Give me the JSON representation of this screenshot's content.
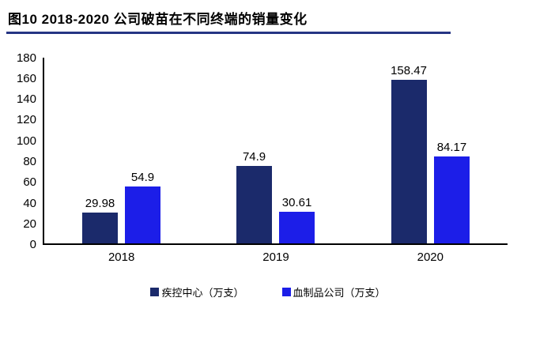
{
  "title": "图10 2018-2020 公司破苗在不同终端的销量变化",
  "colors": {
    "series1": "#1B2A6B",
    "series2": "#1C1EE8",
    "title_rule": "#263584",
    "axis": "#000000"
  },
  "chart_data": {
    "type": "bar",
    "title": "图10 2018-2020 公司破苗在不同终端的销量变化",
    "categories": [
      "2018",
      "2019",
      "2020"
    ],
    "series": [
      {
        "name": "疾控中心（万支）",
        "color": "#1B2A6B",
        "values": [
          29.98,
          74.9,
          158.47
        ]
      },
      {
        "name": "血制品公司（万支）",
        "color": "#1C1EE8",
        "values": [
          54.9,
          30.61,
          84.17
        ]
      }
    ],
    "xlabel": "",
    "ylabel": "",
    "ylim": [
      0,
      180
    ],
    "ytick_step": 20,
    "grid": false,
    "legend_position": "bottom"
  }
}
